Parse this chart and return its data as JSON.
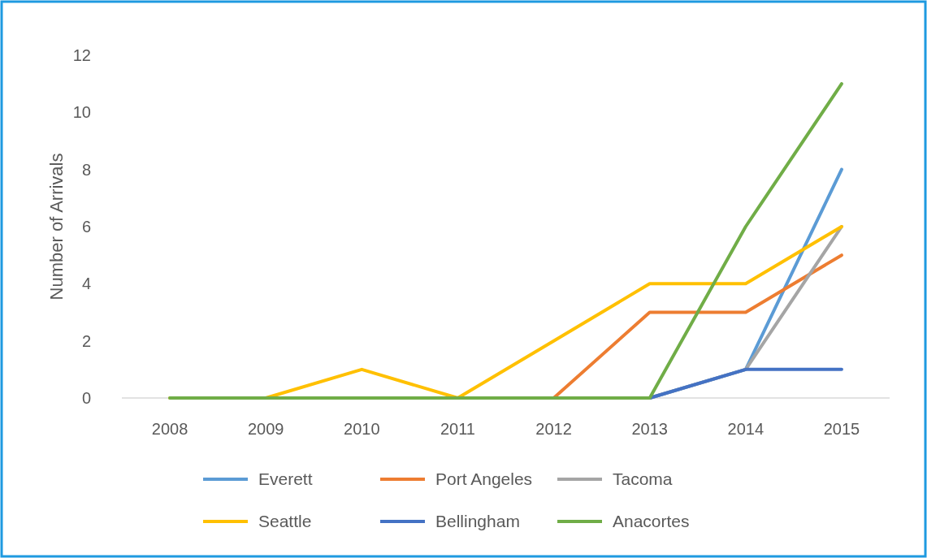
{
  "chart_data": {
    "type": "line",
    "ylabel": "Number of Arrivals",
    "categories": [
      "2008",
      "2009",
      "2010",
      "2011",
      "2012",
      "2013",
      "2014",
      "2015"
    ],
    "ylim": [
      0,
      12
    ],
    "yticks": [
      0,
      2,
      4,
      6,
      8,
      10,
      12
    ],
    "grid": false,
    "legend": "bottom",
    "series": [
      {
        "name": "Everett",
        "color": "#5b9bd5",
        "values": [
          null,
          null,
          null,
          null,
          null,
          0,
          1,
          8
        ]
      },
      {
        "name": "Port Angeles",
        "color": "#ed7d31",
        "values": [
          null,
          null,
          null,
          null,
          0,
          3,
          3,
          5
        ]
      },
      {
        "name": "Tacoma",
        "color": "#a5a5a5",
        "values": [
          null,
          null,
          null,
          null,
          null,
          0,
          1,
          6
        ]
      },
      {
        "name": "Seattle",
        "color": "#ffc000",
        "values": [
          0,
          0,
          1,
          0,
          2,
          4,
          4,
          6
        ]
      },
      {
        "name": "Bellingham",
        "color": "#4472c4",
        "values": [
          null,
          null,
          null,
          null,
          null,
          0,
          1,
          1
        ]
      },
      {
        "name": "Anacortes",
        "color": "#70ad47",
        "values": [
          0,
          0,
          0,
          0,
          0,
          0,
          6,
          11
        ]
      }
    ]
  }
}
